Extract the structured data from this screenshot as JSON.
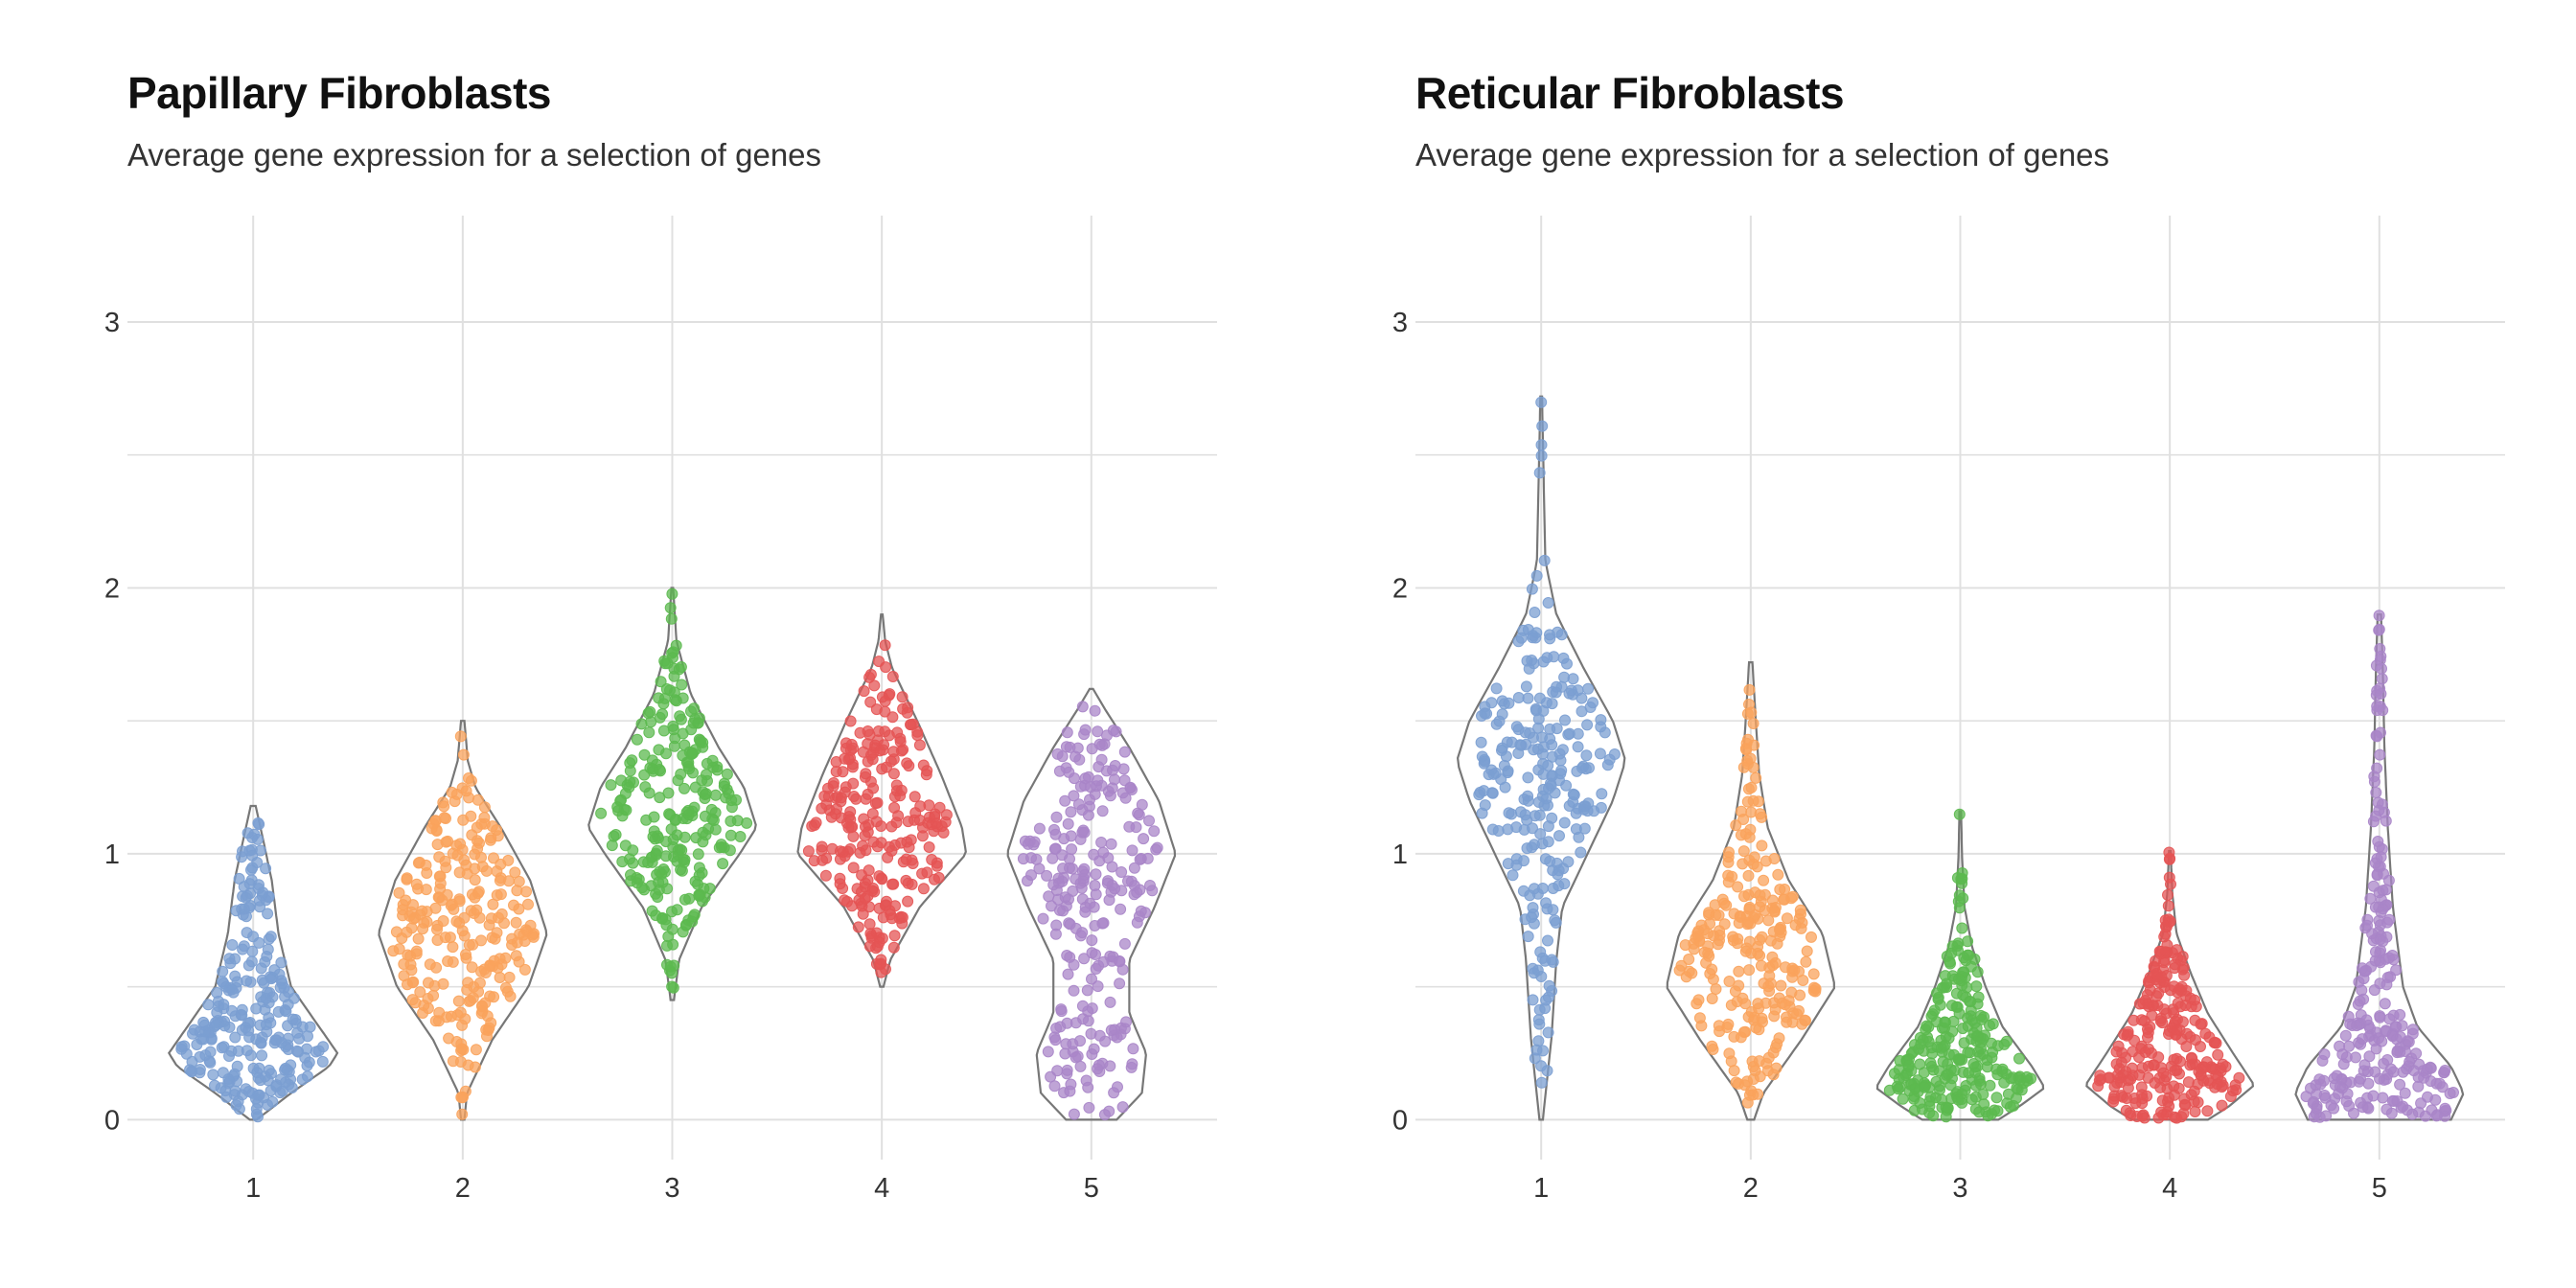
{
  "chart_data": [
    {
      "type": "violin",
      "title": "Papillary Fibroblasts",
      "subtitle": "Average gene expression for a selection of genes",
      "categories": [
        "1",
        "2",
        "3",
        "4",
        "5"
      ],
      "y_ticks": [
        "0",
        "1",
        "2",
        "3"
      ],
      "ylim": [
        -0.15,
        3.4
      ],
      "grid": true,
      "series": [
        {
          "category": "1",
          "color": "#7b9fd1",
          "min": 0.0,
          "max": 1.18,
          "profile": [
            [
              0,
              0.04
            ],
            [
              0.1,
              0.45
            ],
            [
              0.2,
              0.9
            ],
            [
              0.25,
              1.0
            ],
            [
              0.35,
              0.78
            ],
            [
              0.5,
              0.45
            ],
            [
              0.7,
              0.3
            ],
            [
              0.9,
              0.22
            ],
            [
              1.05,
              0.12
            ],
            [
              1.18,
              0.03
            ]
          ]
        },
        {
          "category": "2",
          "color": "#f9a35c",
          "min": 0.0,
          "max": 1.5,
          "profile": [
            [
              0,
              0.02
            ],
            [
              0.1,
              0.05
            ],
            [
              0.3,
              0.35
            ],
            [
              0.5,
              0.78
            ],
            [
              0.7,
              1.0
            ],
            [
              0.9,
              0.8
            ],
            [
              1.1,
              0.45
            ],
            [
              1.25,
              0.15
            ],
            [
              1.35,
              0.06
            ],
            [
              1.5,
              0.02
            ]
          ]
        },
        {
          "category": "3",
          "color": "#5cb94f",
          "min": 0.45,
          "max": 2.0,
          "profile": [
            [
              0.45,
              0.02
            ],
            [
              0.6,
              0.08
            ],
            [
              0.8,
              0.35
            ],
            [
              1.0,
              0.8
            ],
            [
              1.1,
              1.0
            ],
            [
              1.25,
              0.85
            ],
            [
              1.4,
              0.55
            ],
            [
              1.6,
              0.22
            ],
            [
              1.8,
              0.05
            ],
            [
              2.0,
              0.01
            ]
          ]
        },
        {
          "category": "4",
          "color": "#e45454",
          "min": 0.5,
          "max": 1.9,
          "profile": [
            [
              0.5,
              0.02
            ],
            [
              0.6,
              0.1
            ],
            [
              0.8,
              0.45
            ],
            [
              1.0,
              1.0
            ],
            [
              1.1,
              0.95
            ],
            [
              1.3,
              0.7
            ],
            [
              1.5,
              0.42
            ],
            [
              1.7,
              0.12
            ],
            [
              1.8,
              0.04
            ],
            [
              1.9,
              0.01
            ]
          ]
        },
        {
          "category": "5",
          "color": "#a985c8",
          "min": 0.0,
          "max": 1.62,
          "profile": [
            [
              0,
              0.3
            ],
            [
              0.1,
              0.6
            ],
            [
              0.25,
              0.65
            ],
            [
              0.4,
              0.45
            ],
            [
              0.6,
              0.45
            ],
            [
              0.8,
              0.75
            ],
            [
              1.0,
              1.0
            ],
            [
              1.2,
              0.8
            ],
            [
              1.4,
              0.45
            ],
            [
              1.55,
              0.15
            ],
            [
              1.62,
              0.02
            ]
          ]
        }
      ]
    },
    {
      "type": "violin",
      "title": "Reticular Fibroblasts",
      "subtitle": "Average gene expression for a selection of genes",
      "categories": [
        "1",
        "2",
        "3",
        "4",
        "5"
      ],
      "y_ticks": [
        "0",
        "1",
        "2",
        "3"
      ],
      "ylim": [
        -0.15,
        3.4
      ],
      "grid": true,
      "series": [
        {
          "category": "1",
          "color": "#7b9fd1",
          "min": 0.0,
          "max": 2.72,
          "profile": [
            [
              0,
              0.02
            ],
            [
              0.3,
              0.12
            ],
            [
              0.6,
              0.18
            ],
            [
              0.8,
              0.25
            ],
            [
              1.0,
              0.55
            ],
            [
              1.2,
              0.85
            ],
            [
              1.35,
              1.0
            ],
            [
              1.5,
              0.85
            ],
            [
              1.7,
              0.5
            ],
            [
              1.9,
              0.18
            ],
            [
              2.1,
              0.05
            ],
            [
              2.4,
              0.03
            ],
            [
              2.72,
              0.01
            ]
          ]
        },
        {
          "category": "2",
          "color": "#f9a35c",
          "min": 0.0,
          "max": 1.72,
          "profile": [
            [
              0,
              0.04
            ],
            [
              0.1,
              0.15
            ],
            [
              0.3,
              0.6
            ],
            [
              0.5,
              1.0
            ],
            [
              0.7,
              0.85
            ],
            [
              0.9,
              0.45
            ],
            [
              1.1,
              0.2
            ],
            [
              1.3,
              0.1
            ],
            [
              1.5,
              0.06
            ],
            [
              1.72,
              0.02
            ]
          ]
        },
        {
          "category": "3",
          "color": "#5cb94f",
          "min": 0.0,
          "max": 1.16,
          "profile": [
            [
              0,
              0.45
            ],
            [
              0.05,
              0.7
            ],
            [
              0.12,
              1.0
            ],
            [
              0.2,
              0.85
            ],
            [
              0.35,
              0.5
            ],
            [
              0.5,
              0.3
            ],
            [
              0.65,
              0.14
            ],
            [
              0.8,
              0.05
            ],
            [
              1.0,
              0.02
            ],
            [
              1.16,
              0.01
            ]
          ]
        },
        {
          "category": "4",
          "color": "#e45454",
          "min": 0.0,
          "max": 1.01,
          "profile": [
            [
              0,
              0.45
            ],
            [
              0.05,
              0.7
            ],
            [
              0.13,
              1.0
            ],
            [
              0.25,
              0.75
            ],
            [
              0.4,
              0.45
            ],
            [
              0.55,
              0.25
            ],
            [
              0.7,
              0.08
            ],
            [
              0.85,
              0.03
            ],
            [
              1.01,
              0.01
            ]
          ]
        },
        {
          "category": "5",
          "color": "#a985c8",
          "min": 0.0,
          "max": 1.9,
          "profile": [
            [
              0,
              0.85
            ],
            [
              0.1,
              1.0
            ],
            [
              0.2,
              0.85
            ],
            [
              0.35,
              0.45
            ],
            [
              0.5,
              0.28
            ],
            [
              0.8,
              0.16
            ],
            [
              1.1,
              0.1
            ],
            [
              1.4,
              0.06
            ],
            [
              1.7,
              0.04
            ],
            [
              1.9,
              0.02
            ]
          ]
        }
      ]
    }
  ]
}
